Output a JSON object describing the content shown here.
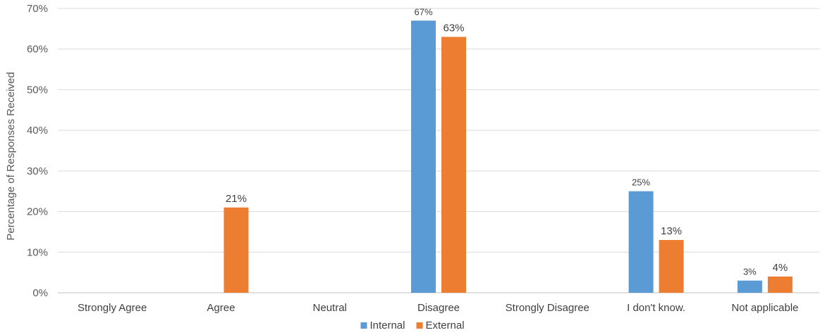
{
  "chart_data": {
    "type": "bar",
    "title": "",
    "xlabel": "",
    "ylabel": "Percentage of Responses Received",
    "ylim": [
      0,
      70
    ],
    "yticks": [
      "0%",
      "10%",
      "20%",
      "30%",
      "40%",
      "50%",
      "60%",
      "70%"
    ],
    "grid": true,
    "legend_position": "bottom",
    "categories": [
      "Strongly Agree",
      "Agree",
      "Neutral",
      "Disagree",
      "Strongly Disagree",
      "I don't know.",
      "Not applicable"
    ],
    "series": [
      {
        "name": "Internal",
        "color": "#5B9BD5",
        "values": [
          null,
          null,
          null,
          67,
          null,
          25,
          3
        ],
        "labels": [
          null,
          null,
          null,
          "67%",
          null,
          "25%",
          "3%"
        ]
      },
      {
        "name": "External",
        "color": "#ED7D31",
        "values": [
          null,
          21,
          null,
          63,
          null,
          13,
          4
        ],
        "labels": [
          null,
          "21%",
          null,
          "63%",
          null,
          "13%",
          "4%"
        ]
      }
    ]
  }
}
